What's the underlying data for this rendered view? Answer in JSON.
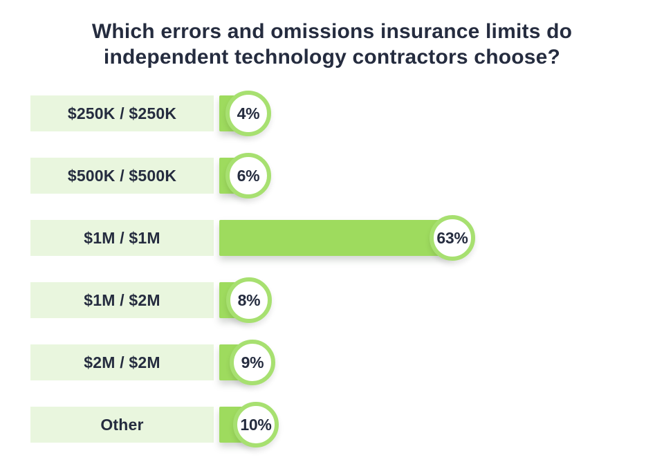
{
  "title": {
    "full": "Which errors and omissions insurance limits do independent technology contractors choose?",
    "line1": "Which errors and omissions insurance limits do",
    "line2": "independent technology contractors choose?"
  },
  "colors": {
    "bar_green": "#9edb5e",
    "ring_green": "#a7e070",
    "label_box_bg": "#e9f6de",
    "text_dark": "#252c3f",
    "page_bg": "#ffffff"
  },
  "chart_data": {
    "type": "bar",
    "orientation": "horizontal",
    "title": "Which errors and omissions insurance limits do independent technology contractors choose?",
    "categories": [
      "$250K / $250K",
      "$500K / $500K",
      "$1M / $1M",
      "$1M / $2M",
      "$2M / $2M",
      "Other"
    ],
    "values": [
      4,
      6,
      63,
      8,
      9,
      10
    ],
    "value_labels": [
      "4%",
      "6%",
      "63%",
      "8%",
      "9%",
      "10%"
    ],
    "unit": "percent",
    "xlim": [
      0,
      63
    ],
    "grid": false,
    "legend": "none",
    "value_label_style": "circle-badge-at-bar-end"
  }
}
